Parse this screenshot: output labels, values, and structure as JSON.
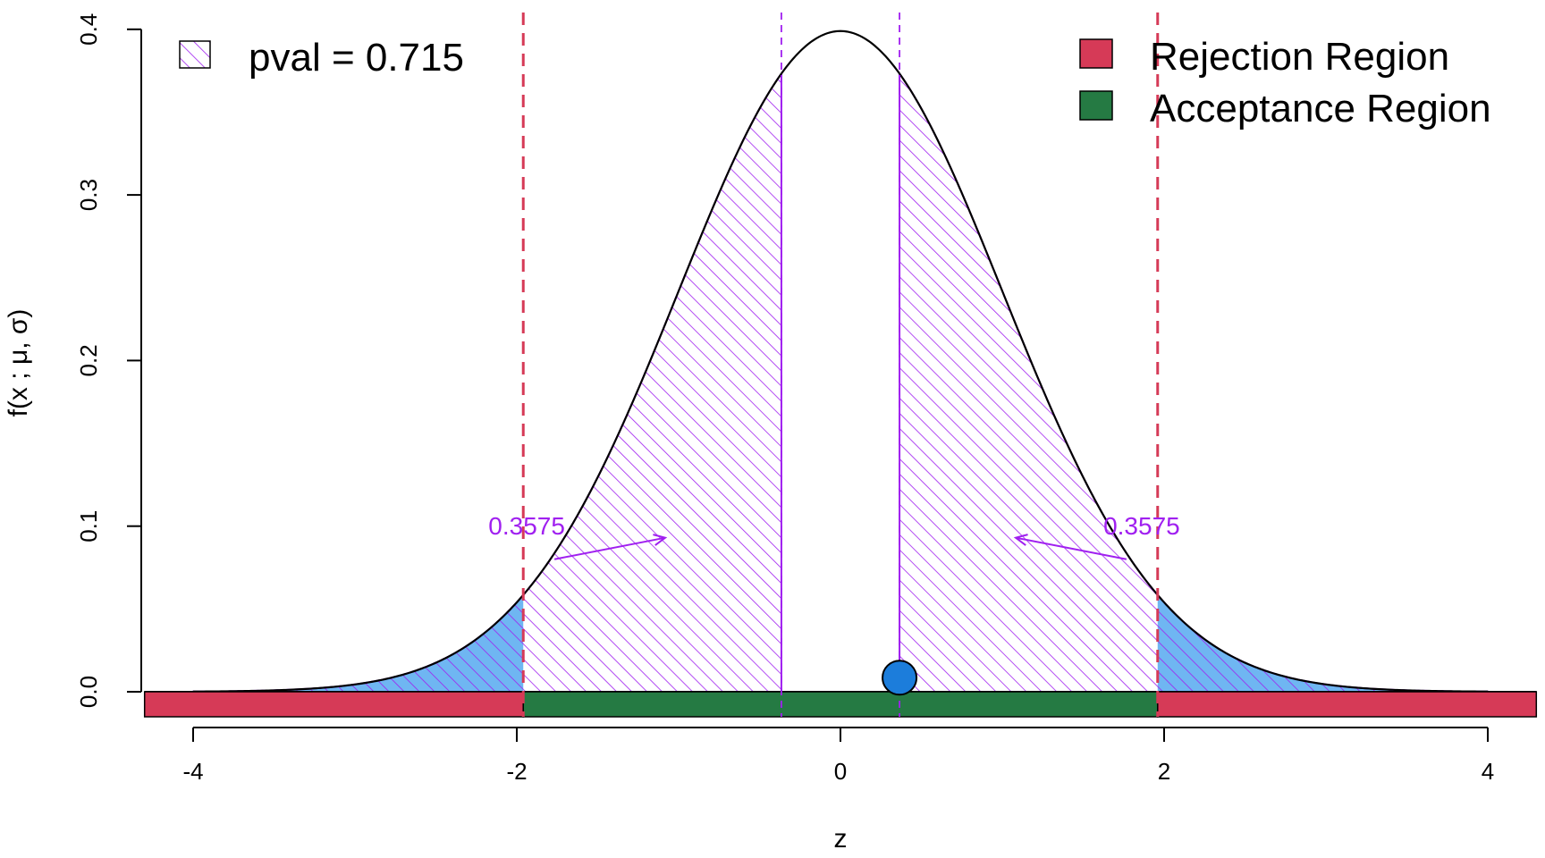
{
  "chart_data": {
    "type": "area",
    "distribution": "standard normal",
    "xlabel": "z",
    "ylabel": "f(x ; μ, σ)",
    "xlim": [
      -4.3,
      4.3
    ],
    "ylim": [
      0,
      0.4
    ],
    "x_ticks": [
      -4,
      -2,
      0,
      2,
      4
    ],
    "x_tick_labels": [
      "-4",
      "-2",
      "0",
      "2",
      "4"
    ],
    "y_ticks": [
      0,
      0.1,
      0.2,
      0.3,
      0.4
    ],
    "y_tick_labels": [
      "0.0",
      "0.1",
      "0.2",
      "0.3",
      "0.4"
    ],
    "critical_values": [
      -1.96,
      1.96
    ],
    "observed_statistic": 0.365,
    "pvalue_cutoffs": [
      -0.365,
      0.365
    ],
    "regions": {
      "rejection": [
        [
          -4.3,
          -1.96
        ],
        [
          1.96,
          4.3
        ]
      ],
      "acceptance": [
        -1.96,
        1.96
      ]
    },
    "annotations": [
      {
        "text": "0.3575",
        "x": -1.9,
        "y": 0.095
      },
      {
        "text": "0.3575",
        "x": 1.9,
        "y": 0.095
      }
    ],
    "legend_left": {
      "entry": "pval = 0.715",
      "placement": "top-left"
    },
    "legend_right": {
      "placement": "top-right",
      "entries": [
        {
          "label": "Rejection Region",
          "color": "#d63a57"
        },
        {
          "label": "Acceptance Region",
          "color": "#257a43"
        }
      ]
    },
    "colors": {
      "curve": "#000000",
      "pvalue": "#a020f0",
      "rejection": "#d63a57",
      "acceptance": "#257a43",
      "tail_fill": "#6fb6f2",
      "point": "#1c7ddb"
    }
  }
}
